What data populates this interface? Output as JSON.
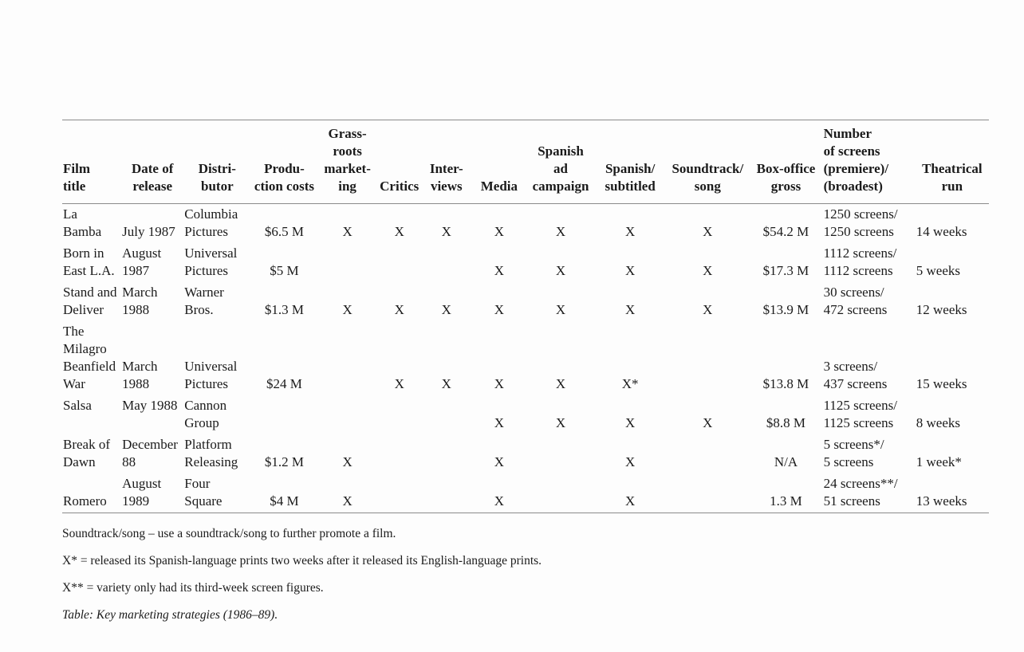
{
  "page": {
    "background": "#fdfdfd",
    "text_color": "#1b1b1b",
    "rule_color": "#8a8a8a"
  },
  "table": {
    "columns": [
      {
        "id": "film-title",
        "label": "Film\ntitle"
      },
      {
        "id": "date-of-release",
        "label": "Date of\nrelease"
      },
      {
        "id": "distributor",
        "label": "Distri-\nbutor"
      },
      {
        "id": "production-costs",
        "label": "Produ-\nction costs"
      },
      {
        "id": "grassroots-marketing",
        "label": "Grass-\nroots\nmarket-\ning"
      },
      {
        "id": "critics",
        "label": "Critics"
      },
      {
        "id": "interviews",
        "label": "Inter-\nviews"
      },
      {
        "id": "media",
        "label": "Media"
      },
      {
        "id": "spanish-ad-campaign",
        "label": "Spanish\nad\ncampaign"
      },
      {
        "id": "spanish-subtitled",
        "label": "Spanish/\nsubtitled"
      },
      {
        "id": "soundtrack-song",
        "label": "Soundtrack/\nsong"
      },
      {
        "id": "box-office-gross",
        "label": "Box-office\ngross"
      },
      {
        "id": "number-of-screens",
        "label": "Number\nof screens\n(premiere)/\n(broadest)"
      },
      {
        "id": "theatrical-run",
        "label": "Theatrical\nrun"
      }
    ],
    "rows": [
      [
        "La\nBamba",
        "July 1987",
        "Columbia\nPictures",
        "$6.5 M",
        "X",
        "X",
        "X",
        "X",
        "X",
        "X",
        "X",
        "$54.2 M",
        "1250 screens/\n1250 screens",
        "14 weeks"
      ],
      [
        "Born in\nEast L.A.",
        "August\n1987",
        "Universal\nPictures",
        "$5 M",
        "",
        "",
        "",
        "X",
        "X",
        "X",
        "X",
        "$17.3 M",
        "1112 screens/\n1112 screens",
        "5 weeks"
      ],
      [
        "Stand and\nDeliver",
        "March\n1988",
        "Warner\nBros.",
        "$1.3 M",
        "X",
        "X",
        "X",
        "X",
        "X",
        "X",
        "X",
        "$13.9 M",
        "30 screens/\n472 screens",
        "12 weeks"
      ],
      [
        "The\nMilagro\nBeanfield\nWar",
        "March\n1988",
        "Universal\nPictures",
        "$24 M",
        "",
        "X",
        "X",
        "X",
        "X",
        "X*",
        "",
        "$13.8 M",
        "3 screens/\n437 screens",
        "15 weeks"
      ],
      [
        "Salsa\n ",
        "May 1988\n ",
        "Cannon\nGroup",
        "",
        "",
        "",
        "",
        "X",
        "X",
        "X",
        "X",
        "$8.8 M",
        "1125 screens/\n1125 screens",
        "8 weeks"
      ],
      [
        "Break of\nDawn",
        "December\n88",
        "Platform\nReleasing",
        "$1.2 M",
        "X",
        "",
        "",
        "X",
        "",
        "X",
        "",
        "N/A",
        "5 screens*/\n5 screens",
        "1 week*"
      ],
      [
        "Romero",
        "August\n1989",
        "Four\nSquare",
        "$4 M",
        "X",
        "",
        "",
        "X",
        "",
        "X",
        "",
        "1.3 M",
        "24 screens**/\n51 screens",
        "13 weeks"
      ]
    ],
    "caption": "Table: Key marketing strategies (1986–89)."
  },
  "footnotes": [
    "Soundtrack/song – use a soundtrack/song to further promote a film.",
    "X* = released its Spanish-language prints two weeks after it released its English-language prints.",
    "X** = variety only had its third-week screen figures."
  ]
}
